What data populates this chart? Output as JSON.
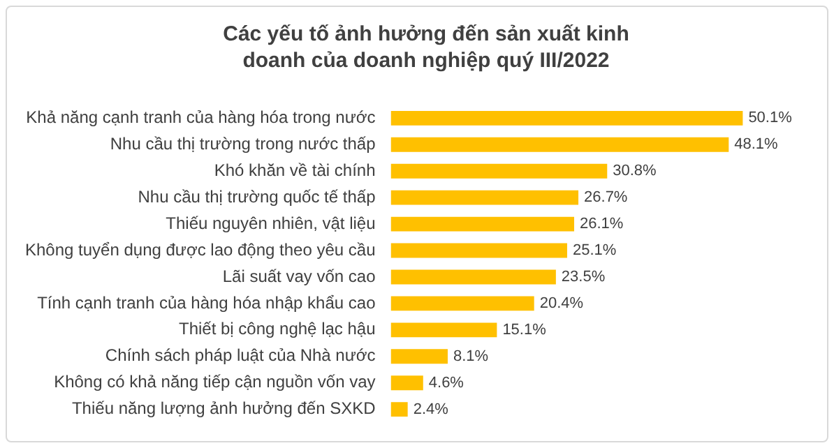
{
  "chart_data": {
    "type": "bar",
    "orientation": "horizontal",
    "title": "Các yếu tố ảnh hưởng đến sản xuất kinh doanh của doanh nghiệp quý III/2022",
    "categories": [
      "Khả năng cạnh tranh của hàng hóa trong nước",
      "Nhu cầu thị trường trong nước thấp",
      "Khó khăn về tài chính",
      "Nhu cầu thị trường quốc tế thấp",
      "Thiếu nguyên nhiên, vật liệu",
      "Không tuyển dụng được lao động theo yêu cầu",
      "Lãi suất vay vốn cao",
      "Tính cạnh tranh của hàng hóa nhập khẩu cao",
      "Thiết bị công nghệ lạc hậu",
      "Chính sách pháp luật của Nhà nước",
      "Không có khả năng tiếp cận nguồn vốn vay",
      "Thiếu năng lượng ảnh hưởng đến SXKD"
    ],
    "values": [
      50.1,
      48.1,
      30.8,
      26.7,
      26.1,
      25.1,
      23.5,
      20.4,
      15.1,
      8.1,
      4.6,
      2.4
    ],
    "value_labels": [
      "50.1%",
      "48.1%",
      "30.8%",
      "26.7%",
      "26.1%",
      "25.1%",
      "23.5%",
      "20.4%",
      "15.1%",
      "8.1%",
      "4.6%",
      "2.4%"
    ],
    "color": "#ffc000",
    "tick_labels": "y",
    "grid": false,
    "legend": false
  }
}
